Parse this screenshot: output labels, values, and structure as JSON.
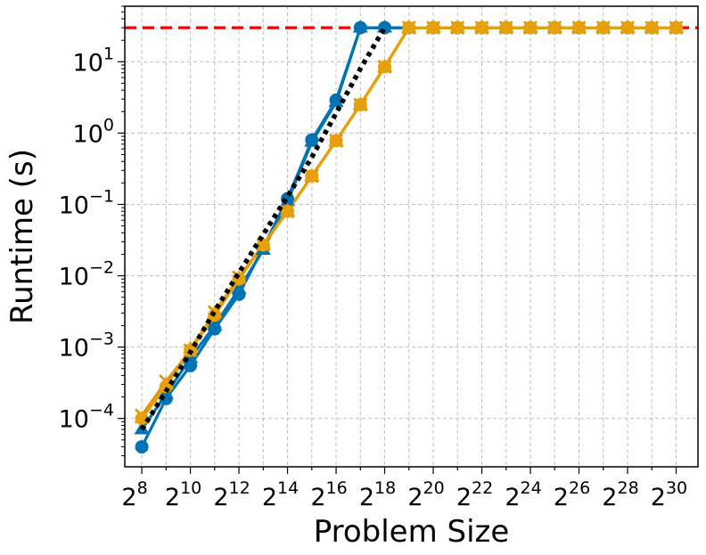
{
  "chart_data": {
    "type": "line",
    "title": "",
    "xlabel": "Problem Size",
    "ylabel": "Runtime (s)",
    "xscale": "log2",
    "yscale": "log10",
    "xlim_exp": [
      7.3,
      30.9
    ],
    "ylim": [
      2.1e-05,
      60
    ],
    "grid": true,
    "xticks": [
      {
        "base": "2",
        "exp": "8"
      },
      {
        "base": "2",
        "exp": "10"
      },
      {
        "base": "2",
        "exp": "12"
      },
      {
        "base": "2",
        "exp": "14"
      },
      {
        "base": "2",
        "exp": "16"
      },
      {
        "base": "2",
        "exp": "18"
      },
      {
        "base": "2",
        "exp": "20"
      },
      {
        "base": "2",
        "exp": "22"
      },
      {
        "base": "2",
        "exp": "24"
      },
      {
        "base": "2",
        "exp": "26"
      },
      {
        "base": "2",
        "exp": "28"
      },
      {
        "base": "2",
        "exp": "30"
      }
    ],
    "yticks": [
      {
        "base": "10",
        "exp": "−4",
        "value": 0.0001
      },
      {
        "base": "10",
        "exp": "−3",
        "value": 0.001
      },
      {
        "base": "10",
        "exp": "−2",
        "value": 0.01
      },
      {
        "base": "10",
        "exp": "−1",
        "value": 0.1
      },
      {
        "base": "10",
        "exp": "0",
        "value": 1
      },
      {
        "base": "10",
        "exp": "1",
        "value": 10
      }
    ],
    "timeout_line": {
      "y": 30,
      "color": "#ee0000"
    },
    "reference": {
      "color": "#000000",
      "x_exp": [
        8,
        9,
        10,
        11,
        12,
        13,
        14,
        15,
        16,
        17,
        18
      ],
      "values": [
        7e-05,
        0.00024,
        0.00085,
        0.0032,
        0.011,
        0.038,
        0.13,
        0.46,
        1.9,
        8.0,
        30
      ]
    },
    "series": [
      {
        "color": "#0173b2",
        "marker": "circle",
        "x_exp": [
          8,
          9,
          10,
          11,
          12,
          13,
          14,
          15,
          16,
          17,
          18,
          19,
          20,
          21,
          22,
          23,
          24,
          25,
          26,
          27,
          28,
          29,
          30
        ],
        "values": [
          4e-05,
          0.00019,
          0.00055,
          0.0018,
          0.0055,
          0.025,
          0.12,
          0.8,
          2.9,
          30,
          30,
          30,
          30,
          30,
          30,
          30,
          30,
          30,
          30,
          30,
          30,
          30,
          30
        ]
      },
      {
        "color": "#0173b2",
        "marker": "triangle",
        "x_exp": [
          8,
          9,
          10,
          11,
          12,
          13,
          14,
          15,
          16,
          17,
          18,
          19,
          20,
          21,
          22,
          23,
          24,
          25,
          26,
          27,
          28,
          29,
          30
        ],
        "values": [
          7e-05,
          0.00022,
          0.0007,
          0.002,
          0.0065,
          0.023,
          0.11,
          0.75,
          2.7,
          30,
          30,
          30,
          30,
          30,
          30,
          30,
          30,
          30,
          30,
          30,
          30,
          30,
          30
        ]
      },
      {
        "color": "#de8f05",
        "marker": "x",
        "x_exp": [
          8,
          9,
          10,
          11,
          12,
          13,
          14,
          15,
          16,
          17,
          18,
          19,
          20,
          21,
          22,
          23,
          24,
          25,
          26,
          27,
          28,
          29,
          30
        ],
        "values": [
          0.00011,
          0.00033,
          0.0009,
          0.0031,
          0.0095,
          0.027,
          0.08,
          0.25,
          0.78,
          2.5,
          8.5,
          30,
          30,
          30,
          30,
          30,
          30,
          30,
          30,
          30,
          30,
          30,
          30
        ]
      },
      {
        "color": "#e6a10a",
        "marker": "circle",
        "x_exp": [
          8,
          9,
          10,
          11,
          12,
          13,
          14,
          15,
          16,
          17,
          18,
          19,
          20,
          21,
          22,
          23,
          24,
          25,
          26,
          27,
          28,
          29,
          30
        ],
        "values": [
          0.0001,
          0.00028,
          0.0009,
          0.0028,
          0.009,
          0.027,
          0.08,
          0.25,
          0.78,
          2.5,
          8.5,
          30,
          30,
          30,
          30,
          30,
          30,
          30,
          30,
          30,
          30,
          30,
          30
        ]
      },
      {
        "color": "#e6a10a",
        "marker": "triangle",
        "x_exp": [
          8,
          9,
          10,
          11,
          12,
          13,
          14,
          15,
          16,
          17,
          18,
          19,
          20,
          21,
          22,
          23,
          24,
          25,
          26,
          27,
          28,
          29,
          30
        ],
        "values": [
          0.0001,
          0.0003,
          0.00095,
          0.003,
          0.0092,
          0.027,
          0.08,
          0.25,
          0.78,
          2.5,
          8.5,
          30,
          30,
          30,
          30,
          30,
          30,
          30,
          30,
          30,
          30,
          30,
          30
        ]
      }
    ]
  }
}
